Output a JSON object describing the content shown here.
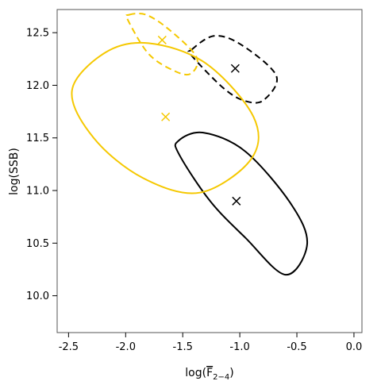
{
  "chart_data": {
    "type": "scatter",
    "xlabel": {
      "prefix": "log(",
      "symbol": "F",
      "subscript": "2−4",
      "suffix": ")"
    },
    "ylabel": "log(SSB)",
    "xlim": [
      -2.6,
      0.07
    ],
    "ylim": [
      9.65,
      12.72
    ],
    "x_ticks": [
      -2.5,
      -2.0,
      -1.5,
      -1.0,
      -0.5,
      0.0
    ],
    "x_tick_labels": [
      "-2.5",
      "-2.0",
      "-1.5",
      "-1.0",
      "-0.5",
      "0.0"
    ],
    "y_ticks": [
      10.0,
      10.5,
      11.0,
      11.5,
      12.0,
      12.5
    ],
    "y_tick_labels": [
      "10.0",
      "10.5",
      "11.0",
      "11.5",
      "12.0",
      "12.5"
    ],
    "grid": false,
    "points": [
      {
        "x": -1.03,
        "y": 10.9,
        "color": "#000000",
        "marker": "x"
      },
      {
        "x": -1.04,
        "y": 12.16,
        "color": "#000000",
        "marker": "x"
      },
      {
        "x": -1.65,
        "y": 11.7,
        "color": "#f5c800",
        "marker": "x"
      },
      {
        "x": -1.68,
        "y": 12.43,
        "color": "#f5c800",
        "marker": "x"
      }
    ],
    "ellipses": [
      {
        "color": "#000000",
        "style": "solid",
        "points": [
          [
            -1.53,
            11.34
          ],
          [
            -1.54,
            11.47
          ],
          [
            -1.32,
            11.55
          ],
          [
            -0.95,
            11.37
          ],
          [
            -0.55,
            10.87
          ],
          [
            -0.41,
            10.49
          ],
          [
            -0.6,
            10.2
          ],
          [
            -0.95,
            10.55
          ],
          [
            -1.26,
            10.9
          ],
          [
            -1.53,
            11.34
          ]
        ]
      },
      {
        "color": "#000000",
        "style": "dashed",
        "points": [
          [
            -1.42,
            12.34
          ],
          [
            -1.22,
            12.47
          ],
          [
            -0.98,
            12.38
          ],
          [
            -0.68,
            12.09
          ],
          [
            -0.79,
            11.86
          ],
          [
            -0.95,
            11.85
          ],
          [
            -1.14,
            11.97
          ],
          [
            -1.42,
            12.28
          ],
          [
            -1.42,
            12.34
          ]
        ]
      },
      {
        "color": "#f5c800",
        "style": "solid",
        "points": [
          [
            -2.47,
            11.95
          ],
          [
            -2.18,
            12.31
          ],
          [
            -1.8,
            12.4
          ],
          [
            -1.3,
            12.21
          ],
          [
            -0.88,
            11.7
          ],
          [
            -0.9,
            11.3
          ],
          [
            -1.35,
            10.98
          ],
          [
            -1.85,
            11.12
          ],
          [
            -2.28,
            11.5
          ],
          [
            -2.47,
            11.95
          ]
        ]
      },
      {
        "color": "#f5c800",
        "style": "dashed",
        "points": [
          [
            -1.97,
            12.67
          ],
          [
            -1.82,
            12.67
          ],
          [
            -1.62,
            12.53
          ],
          [
            -1.38,
            12.27
          ],
          [
            -1.43,
            12.11
          ],
          [
            -1.58,
            12.14
          ],
          [
            -1.8,
            12.3
          ],
          [
            -1.98,
            12.62
          ],
          [
            -1.97,
            12.67
          ]
        ]
      }
    ]
  }
}
